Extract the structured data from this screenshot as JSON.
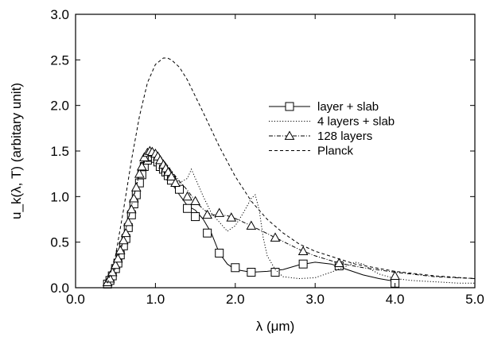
{
  "chart_data": {
    "type": "line",
    "xlabel": "λ (μm)",
    "ylabel": "u_k(λ, T) (arbitary unit)",
    "xlim": [
      0.0,
      5.0
    ],
    "ylim": [
      0.0,
      3.0
    ],
    "xticks": [
      "0.0",
      "1.0",
      "2.0",
      "3.0",
      "4.0",
      "5.0"
    ],
    "yticks": [
      "0.0",
      "0.5",
      "1.0",
      "1.5",
      "2.0",
      "2.5",
      "3.0"
    ],
    "grid": false,
    "legend_position": "right",
    "series": [
      {
        "name": "layer + slab",
        "style": "solid",
        "marker": "square",
        "x": [
          0.4,
          0.45,
          0.5,
          0.55,
          0.6,
          0.65,
          0.7,
          0.75,
          0.8,
          0.85,
          0.9,
          0.95,
          1.0,
          1.05,
          1.1,
          1.15,
          1.2,
          1.3,
          1.4,
          1.5,
          1.6,
          1.7,
          1.8,
          1.9,
          2.0,
          2.2,
          2.4,
          2.6,
          2.8,
          3.0,
          3.2,
          3.4,
          3.6,
          3.8,
          4.0
        ],
        "y": [
          0.03,
          0.12,
          0.25,
          0.38,
          0.55,
          0.72,
          0.9,
          1.1,
          1.27,
          1.38,
          1.44,
          1.43,
          1.4,
          1.35,
          1.28,
          1.2,
          1.15,
          1.02,
          0.9,
          0.85,
          0.75,
          0.6,
          0.38,
          0.26,
          0.2,
          0.17,
          0.18,
          0.2,
          0.25,
          0.28,
          0.26,
          0.2,
          0.14,
          0.1,
          0.07
        ],
        "marker_x": [
          0.4,
          0.43,
          0.46,
          0.5,
          0.53,
          0.56,
          0.6,
          0.63,
          0.66,
          0.7,
          0.73,
          0.76,
          0.8,
          0.83,
          0.86,
          0.9,
          0.93,
          0.96,
          1.0,
          1.03,
          1.06,
          1.1,
          1.13,
          1.16,
          1.2,
          1.3,
          1.4,
          1.5,
          1.65,
          1.8,
          2.0,
          2.2,
          2.5,
          2.85,
          3.3,
          4.0
        ],
        "marker_y": [
          0.04,
          0.08,
          0.13,
          0.21,
          0.27,
          0.36,
          0.46,
          0.54,
          0.66,
          0.8,
          0.92,
          1.02,
          1.15,
          1.24,
          1.33,
          1.4,
          1.43,
          1.44,
          1.42,
          1.38,
          1.33,
          1.3,
          1.27,
          1.23,
          1.18,
          1.08,
          0.87,
          0.78,
          0.6,
          0.38,
          0.22,
          0.17,
          0.17,
          0.26,
          0.24,
          0.05
        ]
      },
      {
        "name": "4 layers + slab",
        "style": "dotted",
        "marker": "none",
        "x": [
          0.4,
          0.5,
          0.6,
          0.7,
          0.8,
          0.9,
          0.95,
          1.0,
          1.1,
          1.2,
          1.3,
          1.4,
          1.45,
          1.5,
          1.6,
          1.7,
          1.8,
          1.9,
          2.0,
          2.05,
          2.1,
          2.15,
          2.2,
          2.25,
          2.3,
          2.35,
          2.4,
          2.5,
          2.6,
          2.8,
          3.0,
          3.2,
          3.4,
          3.5,
          3.6,
          3.7,
          3.8,
          4.0,
          4.2,
          4.4,
          4.6,
          4.8,
          5.0
        ],
        "y": [
          0.04,
          0.25,
          0.55,
          0.9,
          1.25,
          1.45,
          1.48,
          1.46,
          1.38,
          1.27,
          1.15,
          1.2,
          1.3,
          1.2,
          1.0,
          0.82,
          0.72,
          0.62,
          0.68,
          0.75,
          0.82,
          0.9,
          0.98,
          1.02,
          0.85,
          0.55,
          0.35,
          0.2,
          0.12,
          0.1,
          0.11,
          0.17,
          0.24,
          0.28,
          0.26,
          0.2,
          0.15,
          0.1,
          0.08,
          0.07,
          0.06,
          0.05,
          0.05
        ]
      },
      {
        "name": "128 layers",
        "style": "dashdot",
        "marker": "triangle",
        "x": [
          0.4,
          0.5,
          0.6,
          0.7,
          0.8,
          0.9,
          0.95,
          1.0,
          1.1,
          1.2,
          1.3,
          1.4,
          1.5,
          1.6,
          1.7,
          1.8,
          1.9,
          2.0,
          2.2,
          2.5,
          2.8,
          3.0,
          3.3,
          3.6,
          4.0,
          4.5,
          5.0
        ],
        "y": [
          0.03,
          0.22,
          0.52,
          0.9,
          1.25,
          1.47,
          1.5,
          1.48,
          1.4,
          1.28,
          1.17,
          1.07,
          0.95,
          0.86,
          0.8,
          0.8,
          0.79,
          0.76,
          0.68,
          0.55,
          0.42,
          0.35,
          0.27,
          0.22,
          0.17,
          0.12,
          0.1
        ],
        "marker_x": [
          0.4,
          0.43,
          0.46,
          0.5,
          0.53,
          0.56,
          0.6,
          0.63,
          0.66,
          0.7,
          0.73,
          0.76,
          0.8,
          0.83,
          0.86,
          0.9,
          0.93,
          0.96,
          1.0,
          1.03,
          1.06,
          1.1,
          1.13,
          1.16,
          1.2,
          1.25,
          1.4,
          1.5,
          1.65,
          1.8,
          1.95,
          2.2,
          2.5,
          2.85,
          3.3,
          4.0
        ],
        "marker_y": [
          0.06,
          0.1,
          0.17,
          0.25,
          0.32,
          0.41,
          0.52,
          0.6,
          0.72,
          0.86,
          0.98,
          1.1,
          1.25,
          1.33,
          1.43,
          1.48,
          1.5,
          1.49,
          1.47,
          1.44,
          1.4,
          1.35,
          1.31,
          1.27,
          1.22,
          1.15,
          1.0,
          0.95,
          0.8,
          0.82,
          0.77,
          0.68,
          0.55,
          0.4,
          0.27,
          0.13
        ]
      },
      {
        "name": "Planck",
        "style": "dashed",
        "marker": "none",
        "x": [
          0.4,
          0.5,
          0.6,
          0.7,
          0.8,
          0.9,
          1.0,
          1.1,
          1.15,
          1.2,
          1.3,
          1.4,
          1.5,
          1.6,
          1.8,
          2.0,
          2.2,
          2.4,
          2.6,
          2.8,
          3.0,
          3.5,
          4.0,
          4.5,
          5.0
        ],
        "y": [
          0.05,
          0.35,
          0.85,
          1.4,
          1.88,
          2.25,
          2.45,
          2.52,
          2.52,
          2.5,
          2.42,
          2.28,
          2.1,
          1.92,
          1.55,
          1.22,
          0.95,
          0.75,
          0.6,
          0.48,
          0.4,
          0.26,
          0.18,
          0.13,
          0.1
        ]
      }
    ]
  }
}
